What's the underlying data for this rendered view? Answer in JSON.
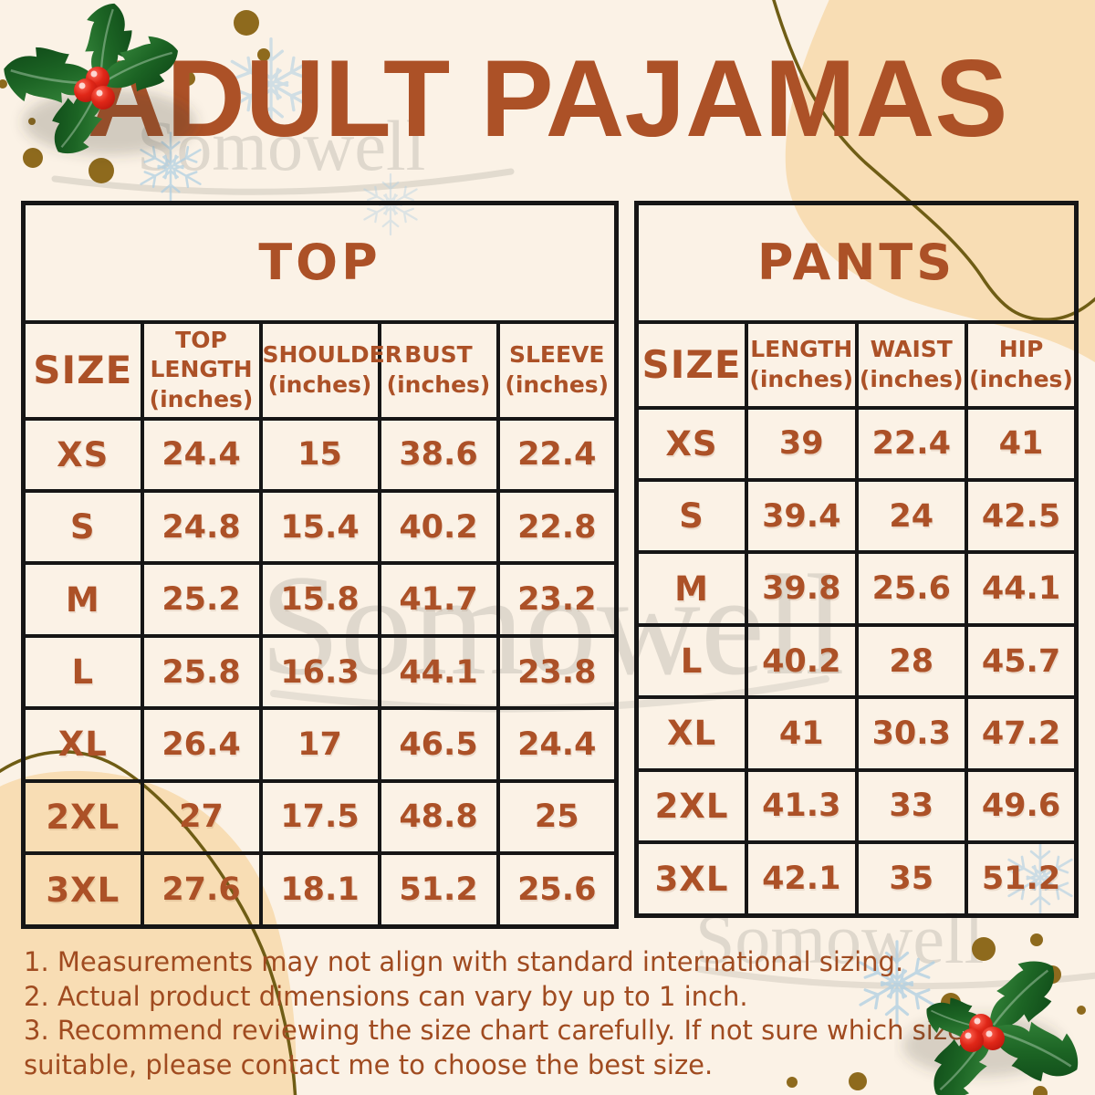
{
  "title": "ADULT PAJAMAS",
  "brand_watermark": "Somowell",
  "colors": {
    "background": "#FBF2E6",
    "accent": "#AC5127",
    "notes": "#A04B20",
    "line": "#161616",
    "blob": "#F8DDB4",
    "watermark": "#CFC9BE",
    "swoosh": "#C9C3B8",
    "snowflake": "#AECFE3",
    "gold": "#8E6A1D",
    "string": "#6F5D15",
    "berry": "#D82115",
    "leaf": "#1C5E22"
  },
  "chart_data": [
    {
      "type": "table",
      "title": "TOP",
      "columns": [
        "SIZE",
        "TOP LENGTH (inches)",
        "SHOULDER (inches)",
        "BUST (inches)",
        "SLEEVE (inches)"
      ],
      "rows": [
        [
          "XS",
          24.4,
          15,
          38.6,
          22.4
        ],
        [
          "S",
          24.8,
          15.4,
          40.2,
          22.8
        ],
        [
          "M",
          25.2,
          15.8,
          41.7,
          23.2
        ],
        [
          "L",
          25.8,
          16.3,
          44.1,
          23.8
        ],
        [
          "XL",
          26.4,
          17,
          46.5,
          24.4
        ],
        [
          "2XL",
          27,
          17.5,
          48.8,
          25
        ],
        [
          "3XL",
          27.6,
          18.1,
          51.2,
          25.6
        ]
      ]
    },
    {
      "type": "table",
      "title": "PANTS",
      "columns": [
        "SIZE",
        "LENGTH (inches)",
        "WAIST (inches)",
        "HIP (inches)"
      ],
      "rows": [
        [
          "XS",
          39,
          22.4,
          41
        ],
        [
          "S",
          39.4,
          24,
          42.5
        ],
        [
          "M",
          39.8,
          25.6,
          44.1
        ],
        [
          "L",
          40.2,
          28,
          45.7
        ],
        [
          "XL",
          41,
          30.3,
          47.2
        ],
        [
          "2XL",
          41.3,
          33,
          49.6
        ],
        [
          "3XL",
          42.1,
          35,
          51.2
        ]
      ]
    }
  ],
  "notes": [
    "1. Measurements may not align with standard international sizing.",
    "2. Actual product dimensions can vary by up to 1 inch.",
    "3. Recommend reviewing the size chart carefully. If not sure which size is",
    "suitable, please contact me to choose the best size."
  ]
}
